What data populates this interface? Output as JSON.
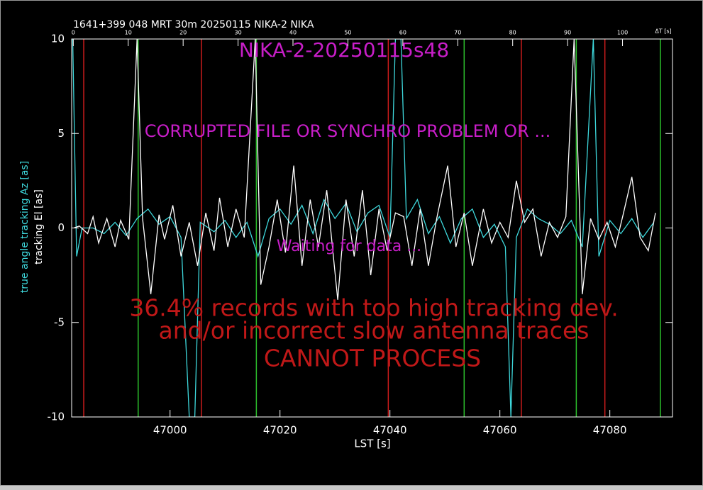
{
  "chart_data": {
    "type": "line",
    "title": "1641+399 048 MRT 30m  20250115 NIKA-2 NIKA",
    "scan_label": "NIKA-2-20250115s48",
    "warning": "CORRUPTED FILE OR SYNCHRO PROBLEM OR ...",
    "status": "Waiting for data ...",
    "errors": [
      "36.4% records with too high tracking dev.",
      "and/or incorrect slow antenna traces",
      "CANNOT PROCESS"
    ],
    "x_label": "LST [s]",
    "x2_label": "ΔT [s]",
    "y_labels": [
      "true angle tracking Az [as]",
      "tracking El [as]"
    ],
    "xlim": [
      46982.1,
      47091.4
    ],
    "xticks": [
      47000,
      47020,
      47040,
      47060,
      47080
    ],
    "x2lim": [
      -0.3,
      109.1
    ],
    "x2ticks": [
      0,
      10,
      20,
      30,
      40,
      50,
      60,
      70,
      80,
      90,
      100
    ],
    "ylim": [
      -10,
      10
    ],
    "yticks": [
      -10,
      -5,
      0,
      5,
      10
    ],
    "markers": {
      "red": {
        "color": "#cc1c1c",
        "x": [
          46984.3,
          47005.7,
          47039.7,
          47063.9,
          47079.1
        ]
      },
      "green": {
        "color": "#2cc02c",
        "x": [
          46994.2,
          47015.7,
          47053.5,
          47073.9,
          47089.2
        ]
      }
    },
    "series": [
      {
        "name": "true angle tracking Az [as]",
        "color": "#3ed8dc",
        "x": [
          46982.3,
          46983,
          46984,
          46986,
          46988,
          46990,
          46992,
          46994,
          46996,
          46998,
          47000,
          47002,
          47003.5,
          47004.5,
          47005.5,
          47008,
          47010,
          47012,
          47014,
          47016,
          47018,
          47020,
          47022,
          47024,
          47026,
          47028,
          47030,
          47032,
          47034,
          47036,
          47038,
          47040,
          47041,
          47042,
          47043,
          47045,
          47047,
          47049,
          47051,
          47053,
          47055,
          47057,
          47059,
          47061,
          47062,
          47063,
          47065,
          47067,
          47069,
          47071,
          47073,
          47075,
          47077,
          47078,
          47080,
          47082,
          47084,
          47086,
          47088
        ],
        "values": [
          10,
          -1.5,
          0,
          0,
          -0.3,
          0.3,
          -0.4,
          0.5,
          1,
          0.2,
          0.6,
          -0.5,
          -10,
          -10,
          0.3,
          -0.2,
          0.4,
          -0.5,
          0.3,
          -1.5,
          0.5,
          1,
          0.2,
          1.2,
          -0.3,
          1.5,
          0.5,
          1.3,
          -0.2,
          0.8,
          1.2,
          -0.5,
          10,
          10,
          0.5,
          1.5,
          -0.3,
          0.6,
          -0.8,
          0.5,
          1,
          -0.5,
          0.2,
          -1,
          -10,
          -0.5,
          1,
          0.5,
          0.2,
          -0.3,
          0.4,
          -1,
          10,
          -1.5,
          0.4,
          -0.3,
          0.5,
          -0.5,
          0.3
        ]
      },
      {
        "name": "tracking El [as]",
        "color": "#ffffff",
        "x": [
          46982.5,
          46983.5,
          46985,
          46986,
          46987,
          46988.5,
          46990,
          46991,
          46992.5,
          46994,
          46995,
          46996.5,
          46998,
          46999,
          47000.5,
          47002,
          47003.5,
          47005,
          47006.5,
          47008,
          47009,
          47010.5,
          47012,
          47013.5,
          47015.5,
          47016.5,
          47018,
          47019.5,
          47021,
          47022.5,
          47024,
          47025.5,
          47027,
          47028.5,
          47030.5,
          47032,
          47033.5,
          47035,
          47036.5,
          47038,
          47039.5,
          47041,
          47042.5,
          47044,
          47045.5,
          47047,
          47048.5,
          47050.5,
          47052,
          47053.5,
          47055,
          47057,
          47058.5,
          47060,
          47061.5,
          47063,
          47064.5,
          47066,
          47067.5,
          47069,
          47070.5,
          47072,
          47073.5,
          47075,
          47076.5,
          47078,
          47079.5,
          47081,
          47082.5,
          47084,
          47085.5,
          47087,
          47088.3
        ],
        "values": [
          0,
          0.1,
          -0.3,
          0.6,
          -0.8,
          0.5,
          -1,
          0.4,
          -0.6,
          10,
          0.5,
          -3.5,
          0.7,
          -0.6,
          1.2,
          -1.5,
          0.3,
          -2,
          0.8,
          -1.2,
          1.6,
          -1,
          1,
          -0.5,
          10,
          -3,
          -1,
          1.5,
          -1.3,
          3.3,
          -2,
          1.5,
          -1,
          2,
          -3.8,
          1.5,
          -1.5,
          2,
          -2.5,
          1,
          -1.2,
          0.8,
          0.6,
          -2,
          1,
          -2,
          0.5,
          3.3,
          -1,
          0.8,
          -2,
          1,
          -0.8,
          0.3,
          -0.5,
          2.5,
          0.3,
          1,
          -1.5,
          0.3,
          -0.5,
          0.6,
          10,
          -3.5,
          0.5,
          -0.6,
          0.3,
          -1,
          0.8,
          2.7,
          -0.5,
          -1.2,
          0.8
        ]
      }
    ]
  }
}
